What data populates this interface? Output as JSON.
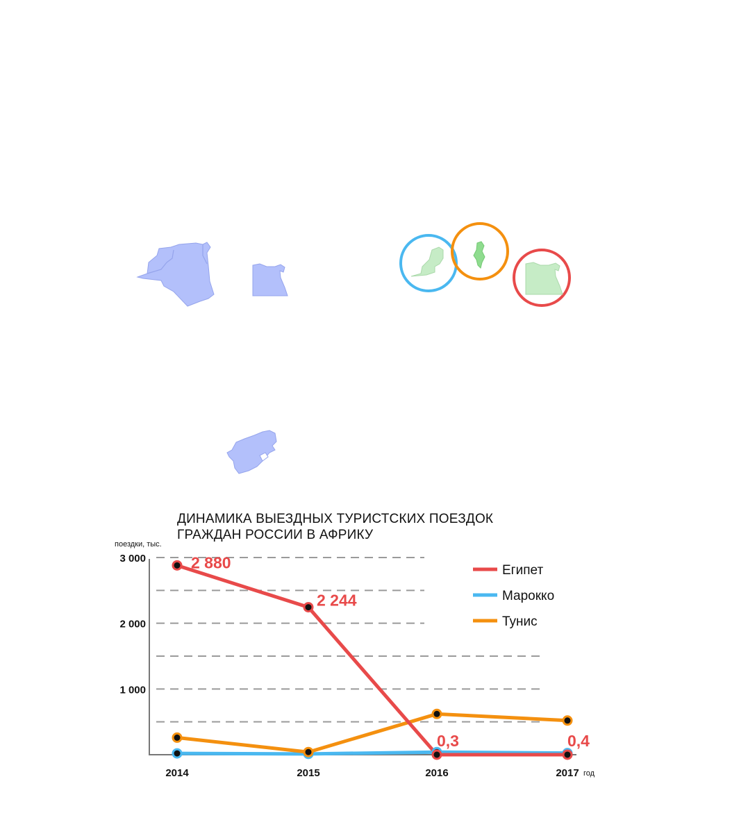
{
  "colors": {
    "egypt": "#e84a4a",
    "morocco": "#4ab8f0",
    "tunisia": "#f4900f",
    "marker_fill": "#111111",
    "map_blue": "#b3c0fb",
    "map_green": "#c6ecc6"
  },
  "icons": {
    "map_shapes": [
      "algeria-morocco-map-icon",
      "egypt-map-icon",
      "south-africa-map-icon"
    ],
    "circled_shapes": [
      "morocco-map-icon",
      "tunisia-map-icon",
      "egypt-map-icon"
    ]
  },
  "chart_data": {
    "type": "line",
    "title_lines": [
      "ДИНАМИКА ВЫЕЗДНЫХ ТУРИСТСКИХ ПОЕЗДОК",
      "ГРАЖДАН РОССИИ В АФРИКУ"
    ],
    "ylabel": "поездки, тыс.",
    "xlabel": "год",
    "categories": [
      "2014",
      "2015",
      "2016",
      "2017"
    ],
    "ylim": [
      0,
      3000
    ],
    "yticks": [
      1000,
      2000,
      3000
    ],
    "ytick_labels": [
      "1 000",
      "2 000",
      "3 000"
    ],
    "grid": true,
    "legend_position": "top-right",
    "series": [
      {
        "name": "Египет",
        "color": "#e84a4a",
        "values": [
          2880,
          2244,
          0.3,
          0.4
        ]
      },
      {
        "name": "Марокко",
        "color": "#4ab8f0",
        "values": [
          20,
          12,
          40,
          25
        ]
      },
      {
        "name": "Тунис",
        "color": "#f4900f",
        "values": [
          260,
          40,
          620,
          520
        ]
      }
    ],
    "data_labels": [
      {
        "series": 0,
        "index": 0,
        "text": "2 880"
      },
      {
        "series": 0,
        "index": 1,
        "text": "2 244"
      },
      {
        "series": 0,
        "index": 2,
        "text": "0,3"
      },
      {
        "series": 0,
        "index": 3,
        "text": "0,4"
      }
    ]
  }
}
